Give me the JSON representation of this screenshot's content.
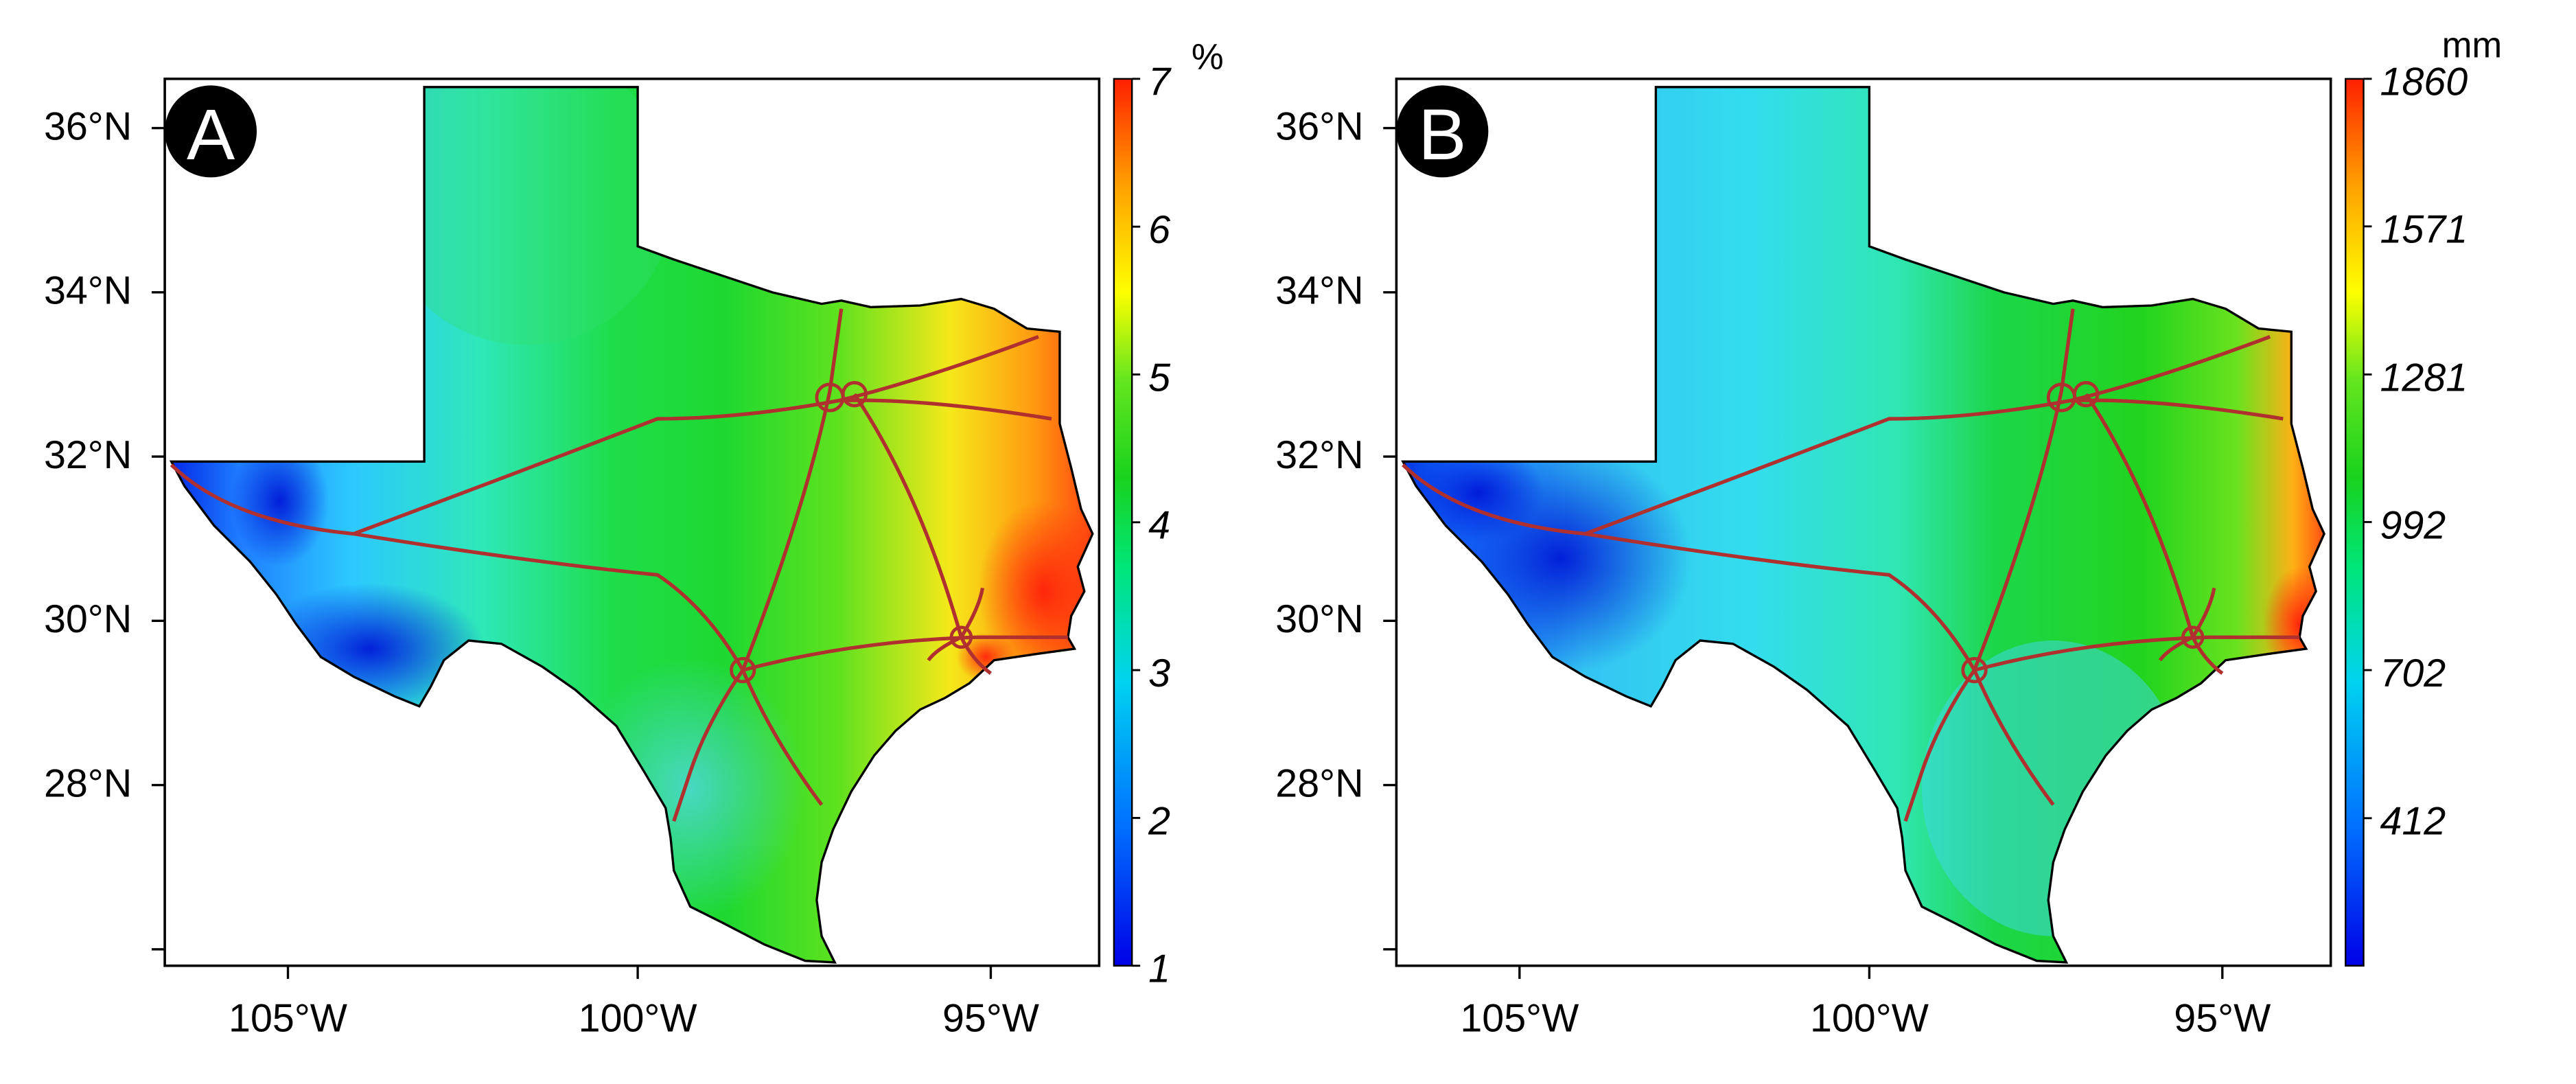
{
  "panels": [
    {
      "letter": "A",
      "unit": "%",
      "colorbar_labels": [
        "7",
        "6",
        "5",
        "4",
        "3",
        "2",
        "1"
      ],
      "colorbar_range": [
        1,
        7
      ],
      "lat_labels": [
        "36°N",
        "34°N",
        "32°N",
        "30°N",
        "28°N"
      ],
      "lon_labels": [
        "105°W",
        "100°W",
        "95°W"
      ]
    },
    {
      "letter": "B",
      "unit": "mm",
      "colorbar_labels": [
        "1860",
        "1571",
        "1281",
        "992",
        "702",
        "412"
      ],
      "colorbar_range": [
        123,
        1860
      ],
      "lat_labels": [
        "36°N",
        "34°N",
        "32°N",
        "30°N",
        "28°N"
      ],
      "lon_labels": [
        "105°W",
        "100°W",
        "95°W"
      ]
    }
  ],
  "colors": {
    "colormap": [
      "#0000e6",
      "#0072ff",
      "#00d2f0",
      "#00e678",
      "#19d21e",
      "#64e61e",
      "#ffff00",
      "#ffa000",
      "#ff2000"
    ],
    "roads": "#b03030",
    "border": "#000000"
  }
}
